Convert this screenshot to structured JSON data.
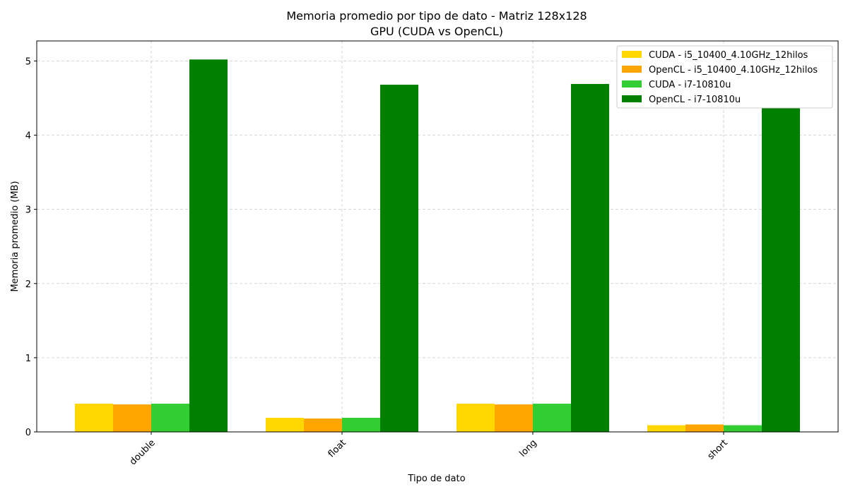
{
  "chart_data": {
    "type": "bar",
    "title": "Memoria promedio por tipo de dato - Matriz 128x128",
    "subtitle": "GPU (CUDA vs OpenCL)",
    "xlabel": "Tipo de dato",
    "ylabel": "Memoria promedio (MB)",
    "categories": [
      "double",
      "float",
      "long",
      "short"
    ],
    "ylim": [
      0,
      5.27
    ],
    "yticks": [
      0,
      1,
      2,
      3,
      4,
      5
    ],
    "grid": true,
    "legend_position": "top-right",
    "series": [
      {
        "name": "CUDA - i5_10400_4.10GHz_12hilos",
        "color": "#FFD700",
        "values": [
          0.38,
          0.19,
          0.38,
          0.09
        ]
      },
      {
        "name": "OpenCL - i5_10400_4.10GHz_12hilos",
        "color": "#FFA500",
        "values": [
          0.37,
          0.18,
          0.37,
          0.1
        ]
      },
      {
        "name": "CUDA - i7-10810u",
        "color": "#32CD32",
        "values": [
          0.38,
          0.19,
          0.38,
          0.09
        ]
      },
      {
        "name": "OpenCL - i7-10810u",
        "color": "#008000",
        "values": [
          5.02,
          4.68,
          4.69,
          4.37
        ]
      }
    ]
  }
}
